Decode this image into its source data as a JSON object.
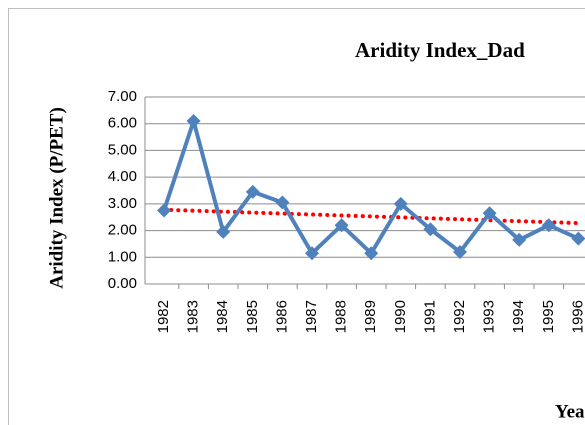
{
  "chart_data": {
    "type": "line",
    "title": "Aridity Index_Dad",
    "y_label": "Aridity Index (P/PET)",
    "x_label": "Yea",
    "categories": [
      "1982",
      "1983",
      "1984",
      "1985",
      "1986",
      "1987",
      "1988",
      "1989",
      "1990",
      "1991",
      "1992",
      "1993",
      "1994",
      "1995",
      "1996"
    ],
    "series": [
      {
        "color": "#4f81bd",
        "values": [
          2.75,
          6.1,
          1.95,
          3.45,
          3.05,
          1.15,
          2.2,
          1.15,
          3.0,
          2.05,
          1.2,
          2.65,
          1.65,
          2.2,
          1.7
        ]
      }
    ],
    "trend": {
      "color": "#ff0000",
      "start": 2.78,
      "end": 2.28
    },
    "ylim": [
      0,
      7
    ],
    "yticks": [
      {
        "value": 0,
        "label": "0.00"
      },
      {
        "value": 1,
        "label": "1.00"
      },
      {
        "value": 2,
        "label": "2.00"
      },
      {
        "value": 3,
        "label": "3.00"
      },
      {
        "value": 4,
        "label": "4.00"
      },
      {
        "value": 5,
        "label": "5.00"
      },
      {
        "value": 6,
        "label": "6.00"
      },
      {
        "value": 7,
        "label": "7.00"
      }
    ],
    "grid": true
  }
}
